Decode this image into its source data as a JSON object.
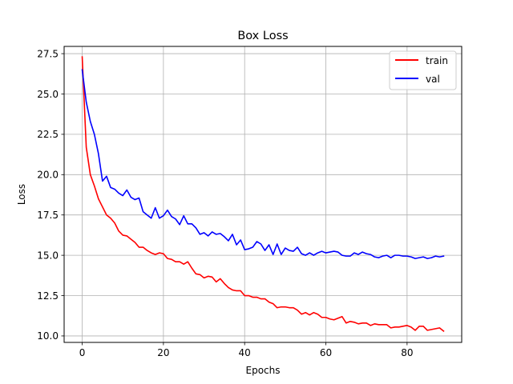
{
  "chart_data": {
    "type": "line",
    "title": "Box Loss",
    "xlabel": "Epochs",
    "ylabel": "Loss",
    "xlim": [
      -4.45,
      93.45
    ],
    "ylim": [
      9.6,
      27.95
    ],
    "xticks": [
      0,
      20,
      40,
      60,
      80
    ],
    "xtick_labels": [
      "0",
      "20",
      "40",
      "60",
      "80"
    ],
    "yticks": [
      10.0,
      12.5,
      15.0,
      17.5,
      20.0,
      22.5,
      25.0,
      27.5
    ],
    "ytick_labels": [
      "10.0",
      "12.5",
      "15.0",
      "17.5",
      "20.0",
      "22.5",
      "25.0",
      "27.5"
    ],
    "grid": true,
    "legend_position": "top-right",
    "x": [
      0,
      1,
      2,
      3,
      4,
      5,
      6,
      7,
      8,
      9,
      10,
      11,
      12,
      13,
      14,
      15,
      16,
      17,
      18,
      19,
      20,
      21,
      22,
      23,
      24,
      25,
      26,
      27,
      28,
      29,
      30,
      31,
      32,
      33,
      34,
      35,
      36,
      37,
      38,
      39,
      40,
      41,
      42,
      43,
      44,
      45,
      46,
      47,
      48,
      49,
      50,
      51,
      52,
      53,
      54,
      55,
      56,
      57,
      58,
      59,
      60,
      61,
      62,
      63,
      64,
      65,
      66,
      67,
      68,
      69,
      70,
      71,
      72,
      73,
      74,
      75,
      76,
      77,
      78,
      79,
      80,
      81,
      82,
      83,
      84,
      85,
      86,
      87,
      88,
      89
    ],
    "series": [
      {
        "name": "train",
        "color": "#ff0000",
        "values": [
          27.3,
          21.7,
          20.0,
          19.3,
          18.5,
          18.0,
          17.5,
          17.3,
          17.0,
          16.5,
          16.25,
          16.2,
          16.0,
          15.8,
          15.5,
          15.5,
          15.3,
          15.15,
          15.05,
          15.15,
          15.1,
          14.8,
          14.75,
          14.6,
          14.6,
          14.45,
          14.6,
          14.2,
          13.85,
          13.8,
          13.6,
          13.7,
          13.65,
          13.35,
          13.55,
          13.25,
          13.0,
          12.85,
          12.8,
          12.8,
          12.5,
          12.5,
          12.4,
          12.4,
          12.3,
          12.3,
          12.1,
          12.0,
          11.75,
          11.8,
          11.8,
          11.75,
          11.75,
          11.6,
          11.35,
          11.45,
          11.3,
          11.45,
          11.35,
          11.15,
          11.15,
          11.05,
          11.0,
          11.1,
          11.2,
          10.8,
          10.9,
          10.85,
          10.75,
          10.8,
          10.8,
          10.65,
          10.75,
          10.7,
          10.7,
          10.7,
          10.5,
          10.55,
          10.55,
          10.6,
          10.65,
          10.55,
          10.35,
          10.6,
          10.6,
          10.35,
          10.4,
          10.45,
          10.5,
          10.3
        ]
      },
      {
        "name": "val",
        "color": "#0000ff",
        "values": [
          26.5,
          24.5,
          23.3,
          22.5,
          21.3,
          19.6,
          19.9,
          19.2,
          19.1,
          18.85,
          18.7,
          19.05,
          18.6,
          18.45,
          18.55,
          17.7,
          17.5,
          17.3,
          17.95,
          17.3,
          17.45,
          17.8,
          17.4,
          17.25,
          16.9,
          17.45,
          16.95,
          16.95,
          16.7,
          16.3,
          16.4,
          16.2,
          16.45,
          16.3,
          16.35,
          16.15,
          15.9,
          16.3,
          15.65,
          15.95,
          15.35,
          15.4,
          15.5,
          15.85,
          15.7,
          15.3,
          15.65,
          15.05,
          15.7,
          15.05,
          15.45,
          15.3,
          15.25,
          15.5,
          15.1,
          15.0,
          15.15,
          15.0,
          15.15,
          15.25,
          15.15,
          15.2,
          15.25,
          15.2,
          15.0,
          14.95,
          14.95,
          15.15,
          15.05,
          15.2,
          15.1,
          15.05,
          14.9,
          14.85,
          14.95,
          15.0,
          14.85,
          15.0,
          15.0,
          14.95,
          14.95,
          14.9,
          14.8,
          14.85,
          14.9,
          14.8,
          14.85,
          14.95,
          14.9,
          14.95
        ]
      }
    ]
  }
}
